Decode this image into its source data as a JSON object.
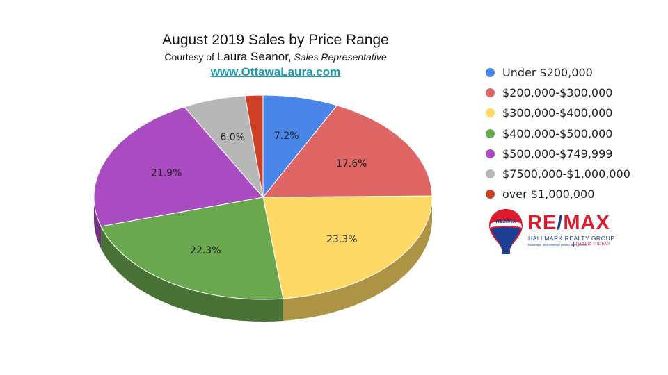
{
  "header": {
    "title": "August 2019 Sales by Price Range",
    "subtitle_prefix": "Courtesy of",
    "subtitle_name": "Laura Seanor,",
    "subtitle_role": "Sales Representative",
    "link": "www.OttawaLaura.com"
  },
  "logo": {
    "brand_left": "RE",
    "brand_slash": "/",
    "brand_right": "MAX",
    "balloon_text": "RE/MAX",
    "line1": "HALLMARK REALTY GROUP",
    "line2": "Brokerage, Independently Owned and Operated",
    "line3": "RAISING THE BAR",
    "colors": {
      "red": "#dc1c2e",
      "blue": "#1c3f95"
    }
  },
  "chart_data": {
    "type": "pie",
    "title": "August 2019 Sales by Price Range",
    "legend_position": "right",
    "three_d": true,
    "slices": [
      {
        "label": "Under $200,000",
        "value": 7.2,
        "display": "7.2%",
        "color": "#4a86e8"
      },
      {
        "label": "$200,000-$300,000",
        "value": 17.6,
        "display": "17.6%",
        "color": "#e06666"
      },
      {
        "label": "$300,000-$400,000",
        "value": 23.3,
        "display": "23.3%",
        "color": "#ffd966"
      },
      {
        "label": "$400,000-$500,000",
        "value": 22.3,
        "display": "22.3%",
        "color": "#6aa84f"
      },
      {
        "label": "$500,000-$749,999",
        "value": 21.9,
        "display": "21.9%",
        "color": "#a94bc1"
      },
      {
        "label": "$7500,000-$1,000,000",
        "value": 6.0,
        "display": "6.0%",
        "color": "#b7b7b7"
      },
      {
        "label": "over $1,000,000",
        "value": 1.7,
        "display": "",
        "color": "#cc4125"
      }
    ]
  }
}
